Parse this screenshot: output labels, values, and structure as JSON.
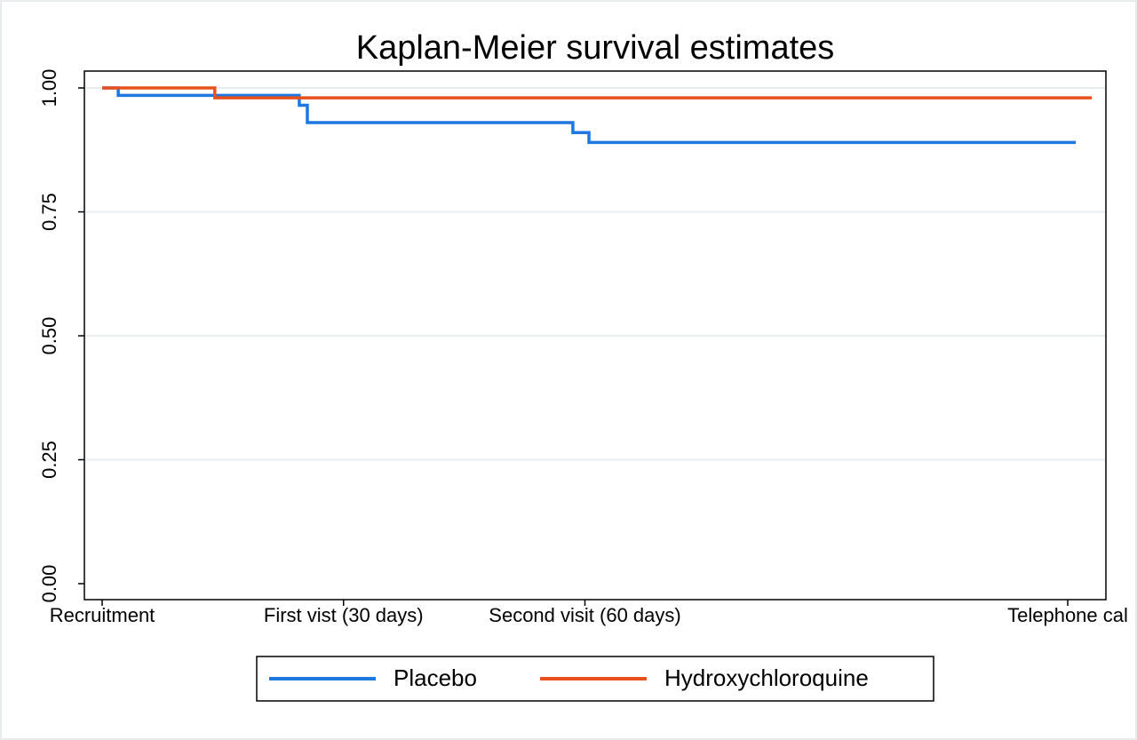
{
  "chart_data": {
    "type": "line",
    "title": "Kaplan-Meier survival estimates",
    "xlabel": "",
    "ylabel": "",
    "x_ticks": [
      {
        "label": "Recruitment",
        "value": 0
      },
      {
        "label": "First vist (30 days)",
        "value": 30
      },
      {
        "label": "Second visit (60 days)",
        "value": 60
      },
      {
        "label": "Telephone cal",
        "value": 120
      }
    ],
    "xlim": [
      0,
      120
    ],
    "y_ticks": [
      "0.00",
      "0.25",
      "0.50",
      "0.75",
      "1.00"
    ],
    "y_tick_values": [
      0,
      0.25,
      0.5,
      0.75,
      1.0
    ],
    "ylim": [
      0,
      1.0
    ],
    "grid": true,
    "legend_position": "bottom",
    "step": true,
    "series": [
      {
        "name": "Placebo",
        "color": "#1f78e0",
        "x": [
          0,
          2,
          24.5,
          25.5,
          58.5,
          60.5,
          121
        ],
        "y": [
          1.0,
          0.985,
          0.965,
          0.93,
          0.91,
          0.89,
          0.89
        ]
      },
      {
        "name": "Hydroxychloroquine",
        "color": "#e8501e",
        "x": [
          0,
          14,
          123
        ],
        "y": [
          1.0,
          0.98,
          0.98
        ]
      }
    ]
  }
}
